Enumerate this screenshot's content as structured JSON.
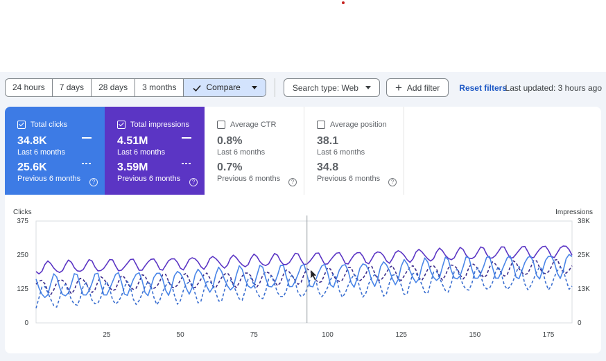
{
  "toolbar": {
    "ranges": [
      "24 hours",
      "7 days",
      "28 days",
      "3 months"
    ],
    "compare_label": "Compare",
    "search_type_label": "Search type: Web",
    "add_filter_label": "Add filter",
    "reset_label": "Reset filters",
    "last_updated": "Last updated: 3 hours ago"
  },
  "metrics": {
    "clicks": {
      "title": "Total clicks",
      "current": "34.8K",
      "current_label": "Last 6 months",
      "previous": "25.6K",
      "previous_label": "Previous 6 months",
      "checked": true,
      "color": "#3d7be5"
    },
    "impressions": {
      "title": "Total impressions",
      "current": "4.51M",
      "current_label": "Last 6 months",
      "previous": "3.59M",
      "previous_label": "Previous 6 months",
      "checked": true,
      "color": "#5b35c4"
    },
    "ctr": {
      "title": "Average CTR",
      "current": "0.8%",
      "current_label": "Last 6 months",
      "previous": "0.7%",
      "previous_label": "Previous 6 months",
      "checked": false
    },
    "position": {
      "title": "Average position",
      "current": "38.1",
      "current_label": "Last 6 months",
      "previous": "34.8",
      "previous_label": "Previous 6 months",
      "checked": false
    }
  },
  "icons": {
    "check": "check-icon",
    "caret": "caret-down-icon",
    "plus": "plus-icon",
    "help": "help-circle-icon"
  },
  "chart_data": {
    "type": "line",
    "left_axis_label": "Clicks",
    "right_axis_label": "Impressions",
    "left_ticks": [
      "0",
      "125",
      "250",
      "375"
    ],
    "right_ticks": [
      "0",
      "13K",
      "25K",
      "38K"
    ],
    "x_ticks": [
      "25",
      "50",
      "75",
      "100",
      "125",
      "150",
      "175"
    ],
    "x_range": [
      1,
      183
    ],
    "y_left_range": [
      0,
      375
    ],
    "y_right_range": [
      0,
      38000
    ],
    "hover_day": 93,
    "series": [
      {
        "axis": "right",
        "style": "solid",
        "color": "#5b35c4",
        "base_start": 20500,
        "base_end": 27000,
        "amp": 2600,
        "phase": 0.5
      },
      {
        "axis": "right",
        "style": "dashed",
        "color": "#3a2a8a",
        "base_start": 13500,
        "base_end": 21000,
        "amp": 3200,
        "phase": 0.9
      },
      {
        "axis": "left",
        "style": "solid",
        "color": "#4a86e8",
        "base_start": 130,
        "base_end": 215,
        "amp": 50,
        "phase": 0.2
      },
      {
        "axis": "left",
        "style": "dashed",
        "color": "#3b6fd0",
        "base_start": 95,
        "base_end": 170,
        "amp": 48,
        "phase": 0.7
      }
    ]
  }
}
